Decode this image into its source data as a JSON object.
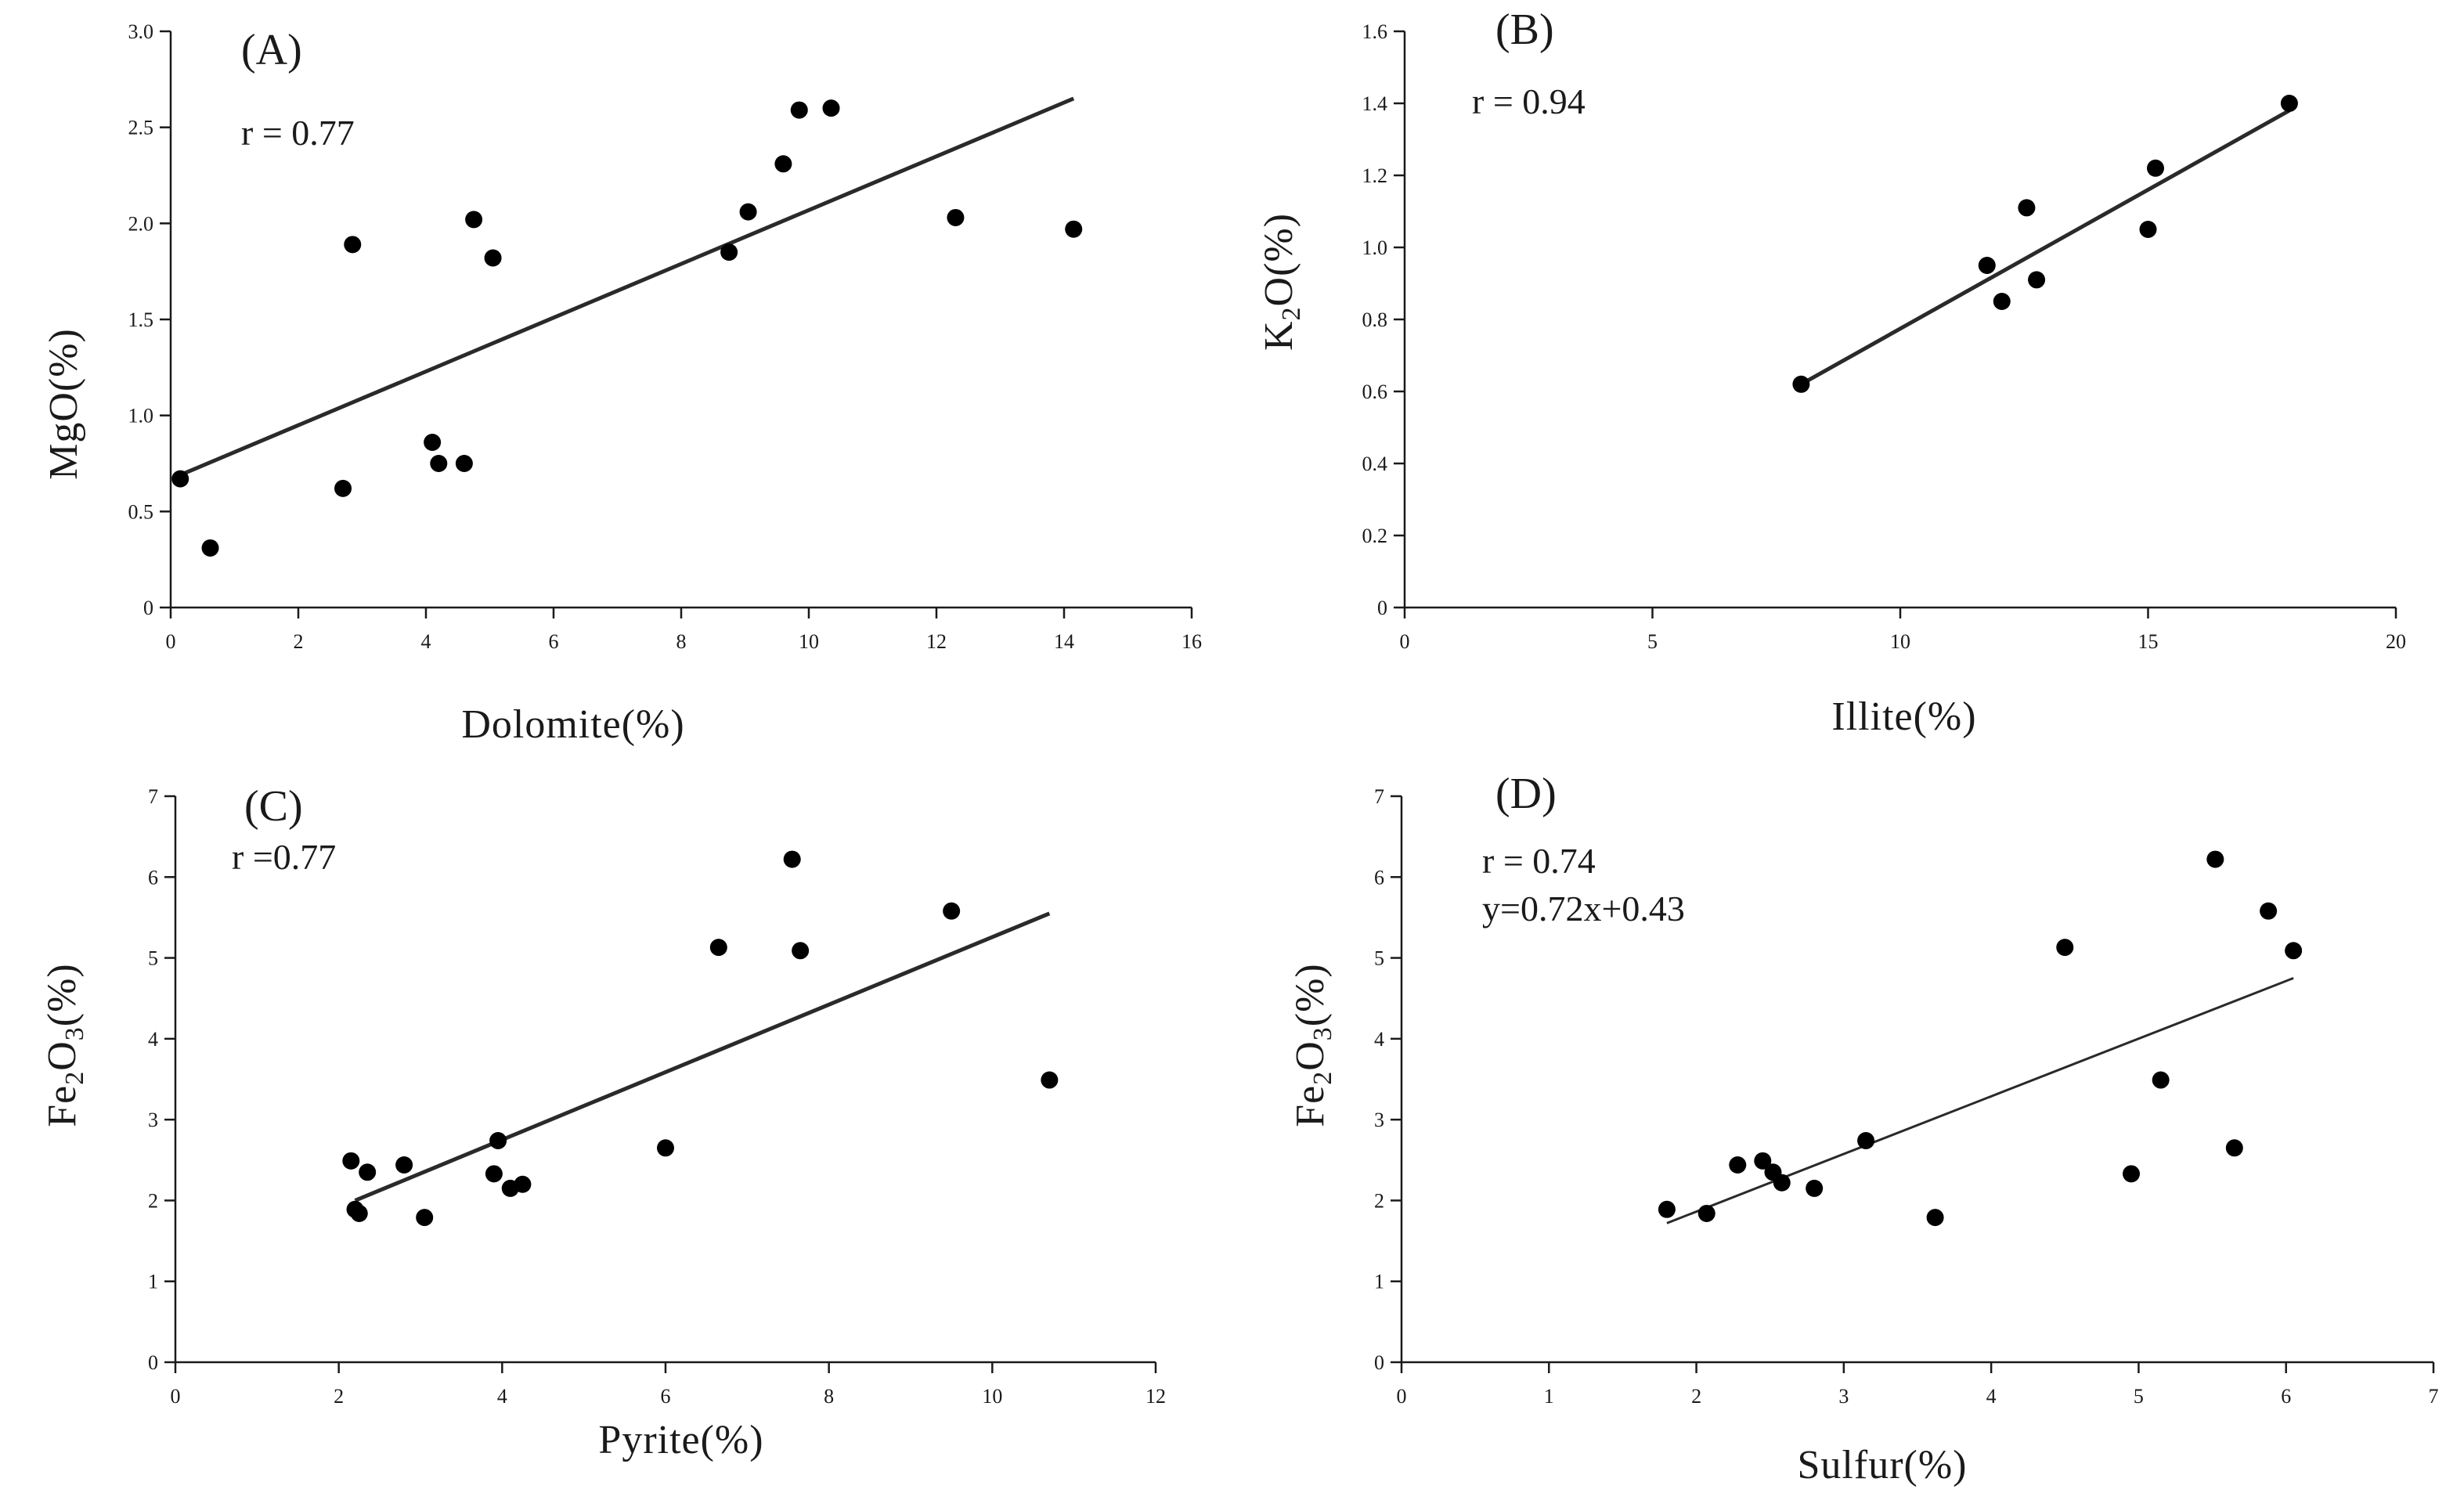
{
  "chart_data": [
    {
      "type": "scatter",
      "panel_label": "(A)",
      "annotations": [
        "r = 0.77"
      ],
      "xlabel": "Dolomite(%)",
      "ylabel": "MgO(%)",
      "xlim": [
        0,
        16
      ],
      "ylim": [
        0,
        3.0
      ],
      "x_ticks": [
        "0",
        "2",
        "4",
        "6",
        "8",
        "10",
        "12",
        "14",
        "16"
      ],
      "y_ticks": [
        "0",
        "0.5",
        "1.0",
        "1.5",
        "2.0",
        "2.5",
        "3.0"
      ],
      "points": [
        {
          "x": 0.15,
          "y": 0.67
        },
        {
          "x": 0.62,
          "y": 0.31
        },
        {
          "x": 2.7,
          "y": 0.62
        },
        {
          "x": 2.85,
          "y": 1.89
        },
        {
          "x": 4.1,
          "y": 0.86
        },
        {
          "x": 4.2,
          "y": 0.75
        },
        {
          "x": 4.6,
          "y": 0.75
        },
        {
          "x": 4.75,
          "y": 2.02
        },
        {
          "x": 5.05,
          "y": 1.82
        },
        {
          "x": 8.75,
          "y": 1.85
        },
        {
          "x": 9.05,
          "y": 2.06
        },
        {
          "x": 9.6,
          "y": 2.31
        },
        {
          "x": 9.85,
          "y": 2.59
        },
        {
          "x": 10.35,
          "y": 2.6
        },
        {
          "x": 12.3,
          "y": 2.03
        },
        {
          "x": 14.15,
          "y": 1.97
        }
      ],
      "trendline": {
        "x": [
          0.15,
          14.15
        ],
        "y": [
          0.69,
          2.65
        ]
      }
    },
    {
      "type": "scatter",
      "panel_label": "(B)",
      "annotations": [
        "r = 0.94"
      ],
      "xlabel": "Illite(%)",
      "ylabel": "K2O(%)",
      "ylabel_parts": [
        "K",
        "2",
        "O(%)"
      ],
      "xlim": [
        0,
        20
      ],
      "ylim": [
        0,
        1.6
      ],
      "x_ticks": [
        "0",
        "5",
        "10",
        "15",
        "20"
      ],
      "y_ticks": [
        "0",
        "0.2",
        "0.4",
        "0.6",
        "0.8",
        "1.0",
        "1.2",
        "1.4",
        "1.6"
      ],
      "points": [
        {
          "x": 8.0,
          "y": 0.62
        },
        {
          "x": 11.75,
          "y": 0.95
        },
        {
          "x": 12.05,
          "y": 0.85
        },
        {
          "x": 12.55,
          "y": 1.11
        },
        {
          "x": 12.75,
          "y": 0.91
        },
        {
          "x": 15.0,
          "y": 1.05
        },
        {
          "x": 15.15,
          "y": 1.22
        },
        {
          "x": 17.85,
          "y": 1.4
        }
      ],
      "trendline": {
        "x": [
          8.0,
          17.85
        ],
        "y": [
          0.62,
          1.38
        ]
      }
    },
    {
      "type": "scatter",
      "panel_label": "(C)",
      "annotations": [
        "r =0.77"
      ],
      "xlabel": "Pyrite(%)",
      "ylabel": "Fe2O3(%)",
      "ylabel_parts": [
        "Fe",
        "2",
        "O",
        "3",
        "(%)"
      ],
      "xlim": [
        0,
        12
      ],
      "ylim": [
        0,
        7
      ],
      "x_ticks": [
        "0",
        "2",
        "4",
        "6",
        "8",
        "10",
        "12"
      ],
      "y_ticks": [
        "0",
        "1",
        "2",
        "3",
        "4",
        "5",
        "6",
        "7"
      ],
      "points": [
        {
          "x": 2.15,
          "y": 2.49
        },
        {
          "x": 2.2,
          "y": 1.89
        },
        {
          "x": 2.25,
          "y": 1.84
        },
        {
          "x": 2.35,
          "y": 2.35
        },
        {
          "x": 2.8,
          "y": 2.44
        },
        {
          "x": 3.05,
          "y": 1.79
        },
        {
          "x": 3.9,
          "y": 2.33
        },
        {
          "x": 3.95,
          "y": 2.74
        },
        {
          "x": 4.1,
          "y": 2.15
        },
        {
          "x": 4.25,
          "y": 2.2
        },
        {
          "x": 6.0,
          "y": 2.65
        },
        {
          "x": 6.65,
          "y": 5.13
        },
        {
          "x": 7.55,
          "y": 6.22
        },
        {
          "x": 7.65,
          "y": 5.09
        },
        {
          "x": 9.5,
          "y": 5.58
        },
        {
          "x": 10.7,
          "y": 3.49
        }
      ],
      "trendline": {
        "x": [
          2.2,
          10.7
        ],
        "y": [
          2.0,
          5.55
        ]
      }
    },
    {
      "type": "scatter",
      "panel_label": "(D)",
      "annotations": [
        "r = 0.74",
        "y=0.72x+0.43"
      ],
      "xlabel": "Sulfur(%)",
      "ylabel": "Fe2O3(%)",
      "ylabel_parts": [
        "Fe",
        "2",
        "O",
        "3",
        "(%)"
      ],
      "xlim": [
        0,
        7
      ],
      "ylim": [
        0,
        7
      ],
      "x_ticks": [
        "0",
        "1",
        "2",
        "3",
        "4",
        "5",
        "6",
        "7"
      ],
      "y_ticks": [
        "0",
        "1",
        "2",
        "3",
        "4",
        "5",
        "6",
        "7"
      ],
      "points": [
        {
          "x": 1.8,
          "y": 1.89
        },
        {
          "x": 2.07,
          "y": 1.84
        },
        {
          "x": 2.28,
          "y": 2.44
        },
        {
          "x": 2.45,
          "y": 2.49
        },
        {
          "x": 2.52,
          "y": 2.35
        },
        {
          "x": 2.58,
          "y": 2.22
        },
        {
          "x": 2.8,
          "y": 2.15
        },
        {
          "x": 3.15,
          "y": 2.74
        },
        {
          "x": 3.62,
          "y": 1.79
        },
        {
          "x": 4.5,
          "y": 5.13
        },
        {
          "x": 4.95,
          "y": 2.33
        },
        {
          "x": 5.15,
          "y": 3.49
        },
        {
          "x": 5.52,
          "y": 6.22
        },
        {
          "x": 5.65,
          "y": 2.65
        },
        {
          "x": 5.88,
          "y": 5.58
        },
        {
          "x": 6.05,
          "y": 5.09
        }
      ],
      "trendline": {
        "x": [
          1.8,
          6.05
        ],
        "y": [
          1.72,
          4.75
        ]
      }
    }
  ]
}
